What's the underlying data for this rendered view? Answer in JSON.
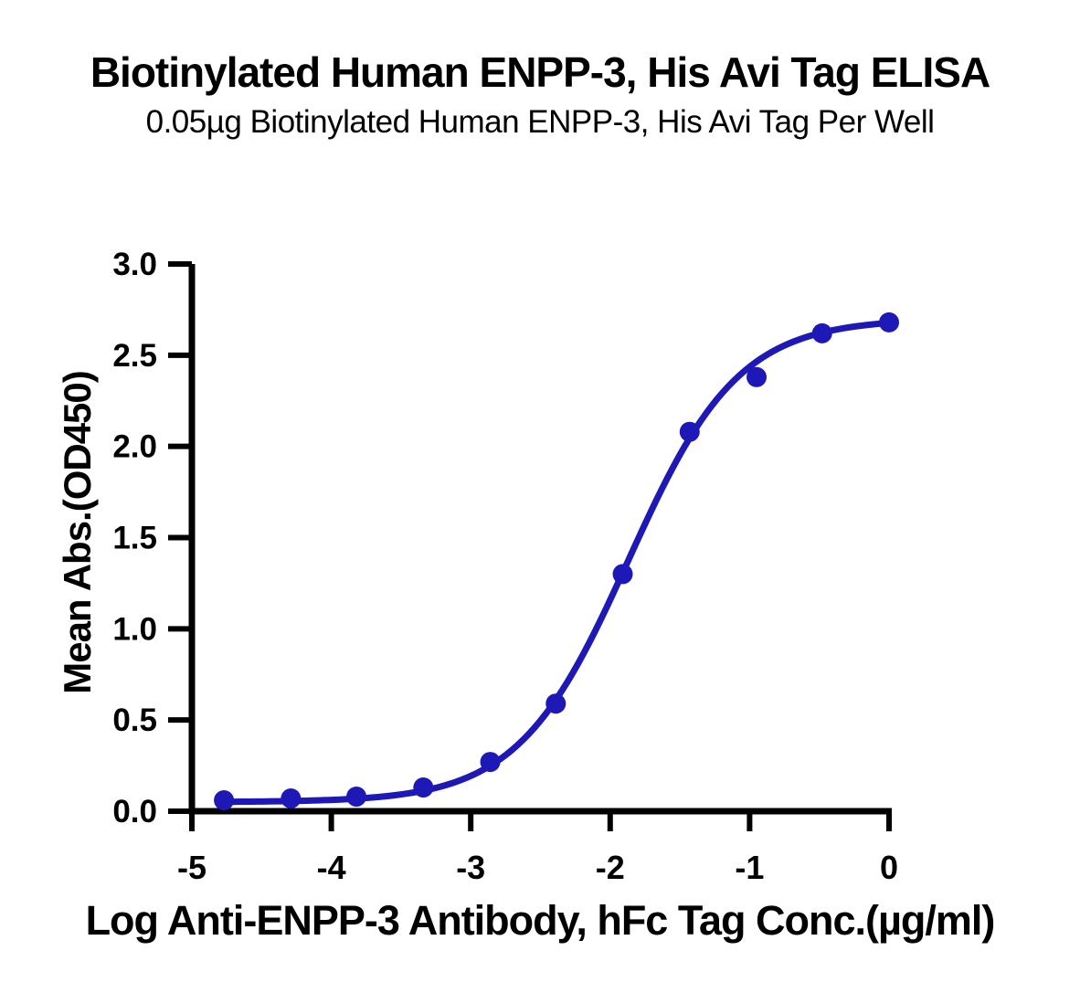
{
  "chart_data": {
    "type": "scatter",
    "title": "Biotinylated Human ENPP-3, His Avi Tag ELISA",
    "subtitle": "0.05µg Biotinylated Human ENPP-3, His Avi Tag Per Well",
    "xlabel": "Log Anti-ENPP-3 Antibody, hFc Tag Conc.(µg/ml)",
    "ylabel": "Mean Abs.(OD450)",
    "x": [
      -4.77,
      -4.29,
      -3.82,
      -3.34,
      -2.86,
      -2.39,
      -1.91,
      -1.43,
      -0.95,
      -0.48,
      0.0
    ],
    "y": [
      0.06,
      0.07,
      0.08,
      0.13,
      0.27,
      0.59,
      1.3,
      2.08,
      2.38,
      2.62,
      2.68
    ],
    "xlim": [
      -5,
      0
    ],
    "ylim": [
      0.0,
      3.0
    ],
    "x_ticks": [
      -5,
      -4,
      -3,
      -2,
      -1,
      0
    ],
    "x_tick_labels": [
      "-5",
      "-4",
      "-3",
      "-2",
      "-1",
      "0"
    ],
    "y_ticks": [
      0.0,
      0.5,
      1.0,
      1.5,
      2.0,
      2.5,
      3.0
    ],
    "y_tick_labels": [
      "0.0",
      "0.5",
      "1.0",
      "1.5",
      "2.0",
      "2.5",
      "3.0"
    ],
    "fit_curve": {
      "model": "4PL",
      "bottom": 0.05,
      "top": 2.7,
      "log_ec50": -1.87,
      "hill": 1.1
    },
    "grid": false,
    "legend": "none",
    "series_color": "#1d18b6",
    "axis_color": "#000000",
    "background_color": "#ffffff"
  }
}
